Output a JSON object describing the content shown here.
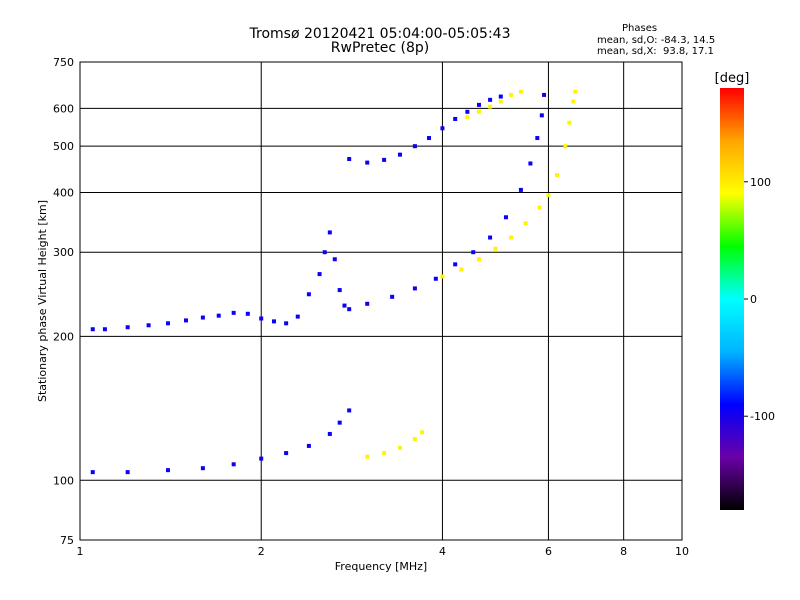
{
  "chart_data": {
    "type": "scatter",
    "title": "Tromsø 20120421 05:04:00-05:05:43",
    "subtitle": "RwPretec (8p)",
    "xlabel": "Frequency [MHz]",
    "ylabel": "Stationary phase Virtual Height [km]",
    "xscale": "log",
    "yscale": "log",
    "xlim": [
      1,
      10
    ],
    "ylim": [
      75,
      750
    ],
    "x_ticks": [
      1,
      2,
      4,
      6,
      8,
      10
    ],
    "y_ticks": [
      75,
      100,
      200,
      300,
      400,
      500,
      600,
      750
    ],
    "grid": true,
    "phases_box": {
      "title": "Phases",
      "line_o": "mean, sd,O: -84.3, 14.5",
      "line_x": "mean, sd,X:  93.8, 17.1"
    },
    "colorbar": {
      "label": "[deg]",
      "range": [
        -180,
        180
      ],
      "ticks": [
        100,
        0,
        -100
      ],
      "colors": [
        "#000000",
        "#6a00a8",
        "#0000ff",
        "#00b4ff",
        "#00ffff",
        "#00ff00",
        "#ffff00",
        "#ffa500",
        "#ff0000"
      ]
    },
    "series": [
      {
        "points": [
          [
            1.05,
            207
          ],
          [
            1.1,
            207
          ],
          [
            1.2,
            209
          ],
          [
            1.3,
            211
          ],
          [
            1.4,
            213
          ],
          [
            1.5,
            216
          ],
          [
            1.6,
            219
          ],
          [
            1.7,
            221
          ],
          [
            1.8,
            224
          ],
          [
            1.9,
            223
          ],
          [
            2.0,
            218
          ],
          [
            2.1,
            215
          ],
          [
            2.2,
            213
          ],
          [
            2.3,
            220
          ],
          [
            2.4,
            245
          ],
          [
            2.5,
            270
          ],
          [
            2.55,
            300
          ],
          [
            2.6,
            330
          ],
          [
            2.65,
            290
          ],
          [
            2.7,
            250
          ],
          [
            2.75,
            232
          ],
          [
            2.8,
            228
          ],
          [
            3.0,
            234
          ],
          [
            3.3,
            242
          ],
          [
            3.6,
            252
          ],
          [
            3.9,
            264
          ],
          [
            4.2,
            283
          ],
          [
            4.5,
            300
          ],
          [
            4.8,
            322
          ],
          [
            5.1,
            355
          ],
          [
            5.4,
            405
          ],
          [
            5.6,
            460
          ],
          [
            5.75,
            520
          ],
          [
            5.85,
            580
          ],
          [
            5.9,
            640
          ]
        ],
        "color_value": -95
      },
      {
        "points": [
          [
            2.8,
            470
          ],
          [
            3.0,
            462
          ],
          [
            3.2,
            468
          ],
          [
            3.4,
            480
          ],
          [
            3.6,
            500
          ],
          [
            3.8,
            520
          ],
          [
            4.0,
            545
          ],
          [
            4.2,
            570
          ],
          [
            4.4,
            590
          ],
          [
            4.6,
            610
          ],
          [
            4.8,
            625
          ],
          [
            5.0,
            635
          ]
        ],
        "color_value": -95
      },
      {
        "points": [
          [
            1.05,
            104
          ],
          [
            1.2,
            104
          ],
          [
            1.4,
            105
          ],
          [
            1.6,
            106
          ],
          [
            1.8,
            108
          ],
          [
            2.0,
            111
          ],
          [
            2.2,
            114
          ],
          [
            2.4,
            118
          ],
          [
            2.6,
            125
          ],
          [
            2.7,
            132
          ],
          [
            2.8,
            140
          ]
        ],
        "color_value": -95
      },
      {
        "points": [
          [
            4.0,
            267
          ],
          [
            4.3,
            276
          ],
          [
            4.6,
            290
          ],
          [
            4.9,
            305
          ],
          [
            5.2,
            322
          ],
          [
            5.5,
            345
          ],
          [
            5.8,
            372
          ],
          [
            6.0,
            395
          ],
          [
            6.2,
            435
          ],
          [
            6.4,
            500
          ],
          [
            6.5,
            560
          ],
          [
            6.6,
            620
          ],
          [
            6.65,
            650
          ]
        ],
        "color_value": 95
      },
      {
        "points": [
          [
            3.0,
            112
          ],
          [
            3.2,
            114
          ],
          [
            3.4,
            117
          ],
          [
            3.6,
            122
          ],
          [
            3.7,
            126
          ]
        ],
        "color_value": 95
      },
      {
        "points": [
          [
            4.4,
            575
          ],
          [
            4.6,
            590
          ],
          [
            4.8,
            605
          ],
          [
            5.0,
            620
          ],
          [
            5.2,
            640
          ],
          [
            5.4,
            650
          ]
        ],
        "color_value": 95
      }
    ]
  }
}
